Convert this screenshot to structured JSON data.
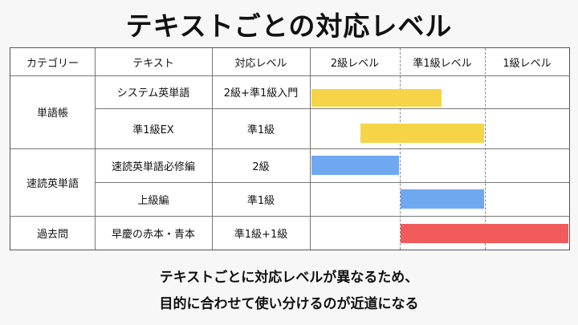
{
  "title": "テキストごとの対応レベル",
  "headers": {
    "category": "カテゴリー",
    "text": "テキスト",
    "level": "対応レベル",
    "lv2": "2級レベル",
    "lvp1": "準1級レベル",
    "lv1": "1級レベル"
  },
  "groups": [
    {
      "name": "単語帳"
    },
    {
      "name": "速読英単語"
    },
    {
      "name": "過去問"
    }
  ],
  "rows": [
    {
      "text": "システム英単語",
      "level": "2級+準1級入門",
      "bar_start": 0.0,
      "bar_end": 1.5,
      "color": "#F5D547"
    },
    {
      "text": "準1級EX",
      "level": "準1級",
      "bar_start": 0.55,
      "bar_end": 2.0,
      "color": "#F5D547"
    },
    {
      "text": "速読英単語必修編",
      "level": "2級",
      "bar_start": 0.0,
      "bar_end": 1.0,
      "color": "#6FA8F0"
    },
    {
      "text": "上級編",
      "level": "準1級",
      "bar_start": 1.0,
      "bar_end": 2.0,
      "color": "#6FA8F0"
    },
    {
      "text": "早慶の赤本・青本",
      "level": "準1級+1級",
      "bar_start": 1.0,
      "bar_end": 3.0,
      "color": "#F25B5B"
    }
  ],
  "caption": {
    "line1": "テキストごとに対応レベルが異なるため、",
    "line2": "目的に合わせて使い分けるのが近道になる"
  }
}
